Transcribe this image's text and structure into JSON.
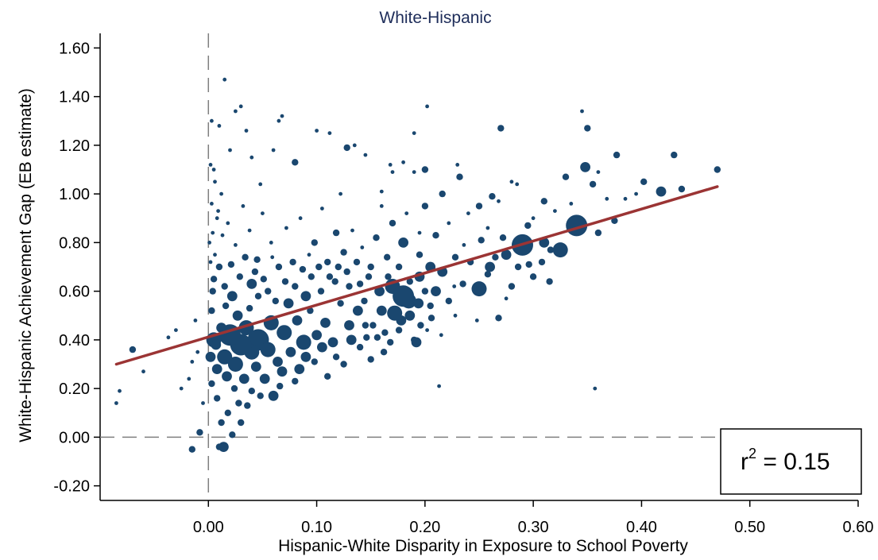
{
  "chart_data": {
    "type": "scatter",
    "title": "White-Hispanic",
    "xlabel": "Hispanic-White Disparity in Exposure to School Poverty",
    "ylabel": "White-Hispanic Achievement Gap (EB estimate)",
    "xlim": [
      -0.1,
      0.6
    ],
    "ylim": [
      -0.26,
      1.66
    ],
    "x_ticks": [
      "0.00",
      "0.10",
      "0.20",
      "0.30",
      "0.40",
      "0.50",
      "0.60"
    ],
    "y_ticks": [
      "-0.20",
      "0.00",
      "0.20",
      "0.40",
      "0.60",
      "0.80",
      "1.00",
      "1.20",
      "1.40",
      "1.60"
    ],
    "reference_lines": {
      "x": 0,
      "y": 0,
      "style": "dashed"
    },
    "fit_line": {
      "x": [
        -0.085,
        0.47
      ],
      "y": [
        0.3,
        1.03
      ],
      "color": "#9b3434"
    },
    "annotation": {
      "base": "r",
      "exponent": "2",
      "rest": " = 0.15"
    },
    "marker_color": "#1a476f",
    "grid": false,
    "points_note_free": true,
    "points": [
      [
        -0.085,
        0.14,
        1
      ],
      [
        -0.082,
        0.19,
        1
      ],
      [
        -0.07,
        0.36,
        2
      ],
      [
        -0.06,
        0.27,
        1
      ],
      [
        -0.037,
        0.41,
        1
      ],
      [
        -0.03,
        0.44,
        1
      ],
      [
        -0.025,
        0.2,
        1
      ],
      [
        -0.018,
        0.24,
        1
      ],
      [
        -0.015,
        0.31,
        1
      ],
      [
        -0.012,
        0.48,
        1
      ],
      [
        -0.01,
        0.35,
        1
      ],
      [
        -0.015,
        -0.05,
        2
      ],
      [
        -0.008,
        0.02,
        2
      ],
      [
        -0.005,
        0.14,
        1
      ],
      [
        0.003,
        1.3,
        1
      ],
      [
        0.015,
        1.47,
        1
      ],
      [
        0.005,
        1.1,
        1
      ],
      [
        0.01,
        1.28,
        1
      ],
      [
        0.025,
        1.34,
        1
      ],
      [
        0.03,
        1.36,
        1
      ],
      [
        0.035,
        1.26,
        1
      ],
      [
        0.04,
        1.15,
        1
      ],
      [
        0.048,
        1.04,
        1
      ],
      [
        0.065,
        1.3,
        1
      ],
      [
        0.068,
        1.32,
        1
      ],
      [
        0.02,
        1.18,
        1
      ],
      [
        0.06,
        1.18,
        1
      ],
      [
        0.08,
        1.13,
        2
      ],
      [
        0.1,
        1.26,
        1
      ],
      [
        0.112,
        1.25,
        1
      ],
      [
        0.128,
        1.19,
        2
      ],
      [
        0.135,
        1.2,
        1
      ],
      [
        0.145,
        1.16,
        1
      ],
      [
        0.16,
        1.01,
        1
      ],
      [
        0.168,
        1.12,
        1
      ],
      [
        0.17,
        1.09,
        1
      ],
      [
        0.18,
        1.13,
        1
      ],
      [
        0.19,
        1.09,
        1
      ],
      [
        0.19,
        1.25,
        1
      ],
      [
        0.2,
        1.1,
        2
      ],
      [
        0.202,
        1.36,
        1
      ],
      [
        0.216,
        1.0,
        2
      ],
      [
        0.23,
        1.12,
        1
      ],
      [
        0.232,
        1.07,
        2
      ],
      [
        0.24,
        0.92,
        1
      ],
      [
        0.25,
        0.95,
        2
      ],
      [
        0.258,
        0.86,
        1
      ],
      [
        0.262,
        0.99,
        2
      ],
      [
        0.268,
        0.97,
        1
      ],
      [
        0.27,
        1.27,
        2
      ],
      [
        0.28,
        1.05,
        1
      ],
      [
        0.285,
        1.04,
        1
      ],
      [
        0.295,
        0.87,
        2
      ],
      [
        0.3,
        0.9,
        1
      ],
      [
        0.31,
        0.97,
        2
      ],
      [
        0.32,
        0.93,
        1
      ],
      [
        0.33,
        1.07,
        2
      ],
      [
        0.335,
        0.96,
        1
      ],
      [
        0.345,
        1.34,
        1
      ],
      [
        0.348,
        1.11,
        3
      ],
      [
        0.35,
        1.27,
        2
      ],
      [
        0.355,
        1.04,
        2
      ],
      [
        0.36,
        1.09,
        1
      ],
      [
        0.368,
        0.98,
        1
      ],
      [
        0.377,
        1.16,
        2
      ],
      [
        0.385,
        0.98,
        1
      ],
      [
        0.395,
        1.0,
        1
      ],
      [
        0.402,
        1.05,
        2
      ],
      [
        0.418,
        1.01,
        3
      ],
      [
        0.43,
        1.16,
        2
      ],
      [
        0.437,
        1.02,
        2
      ],
      [
        0.47,
        1.1,
        2
      ],
      [
        0.375,
        0.89,
        2
      ],
      [
        0.36,
        0.84,
        2
      ],
      [
        0.34,
        0.87,
        5
      ],
      [
        0.325,
        0.77,
        4
      ],
      [
        0.31,
        0.8,
        3
      ],
      [
        0.29,
        0.79,
        5
      ],
      [
        0.275,
        0.75,
        3
      ],
      [
        0.26,
        0.7,
        3
      ],
      [
        0.25,
        0.61,
        4
      ],
      [
        0.235,
        0.63,
        2
      ],
      [
        0.248,
        0.48,
        1
      ],
      [
        0.268,
        0.49,
        2
      ],
      [
        0.28,
        0.62,
        2
      ],
      [
        0.3,
        0.66,
        2
      ],
      [
        0.315,
        0.64,
        2
      ],
      [
        0.275,
        0.57,
        1
      ],
      [
        0.227,
        0.62,
        1
      ],
      [
        0.222,
        0.56,
        2
      ],
      [
        0.21,
        0.6,
        3
      ],
      [
        0.205,
        0.54,
        2
      ],
      [
        0.195,
        0.66,
        3
      ],
      [
        0.185,
        0.56,
        4
      ],
      [
        0.178,
        0.48,
        3
      ],
      [
        0.17,
        0.62,
        4
      ],
      [
        0.16,
        0.52,
        3
      ],
      [
        0.152,
        0.46,
        2
      ],
      [
        0.146,
        0.41,
        2
      ],
      [
        0.138,
        0.52,
        3
      ],
      [
        0.13,
        0.46,
        3
      ],
      [
        0.122,
        0.55,
        2
      ],
      [
        0.115,
        0.39,
        3
      ],
      [
        0.108,
        0.47,
        3
      ],
      [
        0.1,
        0.42,
        3
      ],
      [
        0.094,
        0.52,
        2
      ],
      [
        0.088,
        0.39,
        4
      ],
      [
        0.082,
        0.48,
        3
      ],
      [
        0.076,
        0.35,
        3
      ],
      [
        0.07,
        0.43,
        4
      ],
      [
        0.064,
        0.31,
        3
      ],
      [
        0.058,
        0.47,
        4
      ],
      [
        0.052,
        0.24,
        3
      ],
      [
        0.046,
        0.4,
        5
      ],
      [
        0.04,
        0.35,
        4
      ],
      [
        0.035,
        0.45,
        4
      ],
      [
        0.03,
        0.38,
        5
      ],
      [
        0.025,
        0.3,
        4
      ],
      [
        0.02,
        0.42,
        5
      ],
      [
        0.015,
        0.33,
        4
      ],
      [
        0.012,
        0.45,
        3
      ],
      [
        0.008,
        0.28,
        3
      ],
      [
        0.005,
        0.4,
        4
      ],
      [
        0.003,
        0.52,
        2
      ],
      [
        0.022,
        0.58,
        3
      ],
      [
        0.04,
        0.63,
        3
      ],
      [
        0.055,
        0.6,
        2
      ],
      [
        0.065,
        0.7,
        2
      ],
      [
        0.08,
        0.62,
        2
      ],
      [
        0.095,
        0.66,
        2
      ],
      [
        0.11,
        0.72,
        2
      ],
      [
        0.125,
        0.76,
        2
      ],
      [
        0.14,
        0.63,
        2
      ],
      [
        0.15,
        0.7,
        2
      ],
      [
        0.165,
        0.74,
        2
      ],
      [
        0.18,
        0.8,
        3
      ],
      [
        0.195,
        0.75,
        2
      ],
      [
        0.205,
        0.7,
        3
      ],
      [
        0.216,
        0.68,
        3
      ],
      [
        0.196,
        0.46,
        2
      ],
      [
        0.19,
        0.4,
        2
      ],
      [
        0.192,
        0.39,
        3
      ],
      [
        0.213,
        0.21,
        1
      ],
      [
        0.206,
        0.49,
        2
      ],
      [
        0.18,
        0.58,
        5
      ],
      [
        0.172,
        0.51,
        4
      ],
      [
        0.163,
        0.43,
        2
      ],
      [
        0.162,
        0.35,
        2
      ],
      [
        0.15,
        0.32,
        2
      ],
      [
        0.14,
        0.37,
        2
      ],
      [
        0.125,
        0.3,
        2
      ],
      [
        0.11,
        0.25,
        2
      ],
      [
        0.098,
        0.31,
        2
      ],
      [
        0.084,
        0.28,
        3
      ],
      [
        0.08,
        0.23,
        2
      ],
      [
        0.066,
        0.21,
        2
      ],
      [
        0.06,
        0.17,
        3
      ],
      [
        0.048,
        0.17,
        2
      ],
      [
        0.036,
        0.13,
        2
      ],
      [
        0.028,
        0.14,
        2
      ],
      [
        0.018,
        0.1,
        2
      ],
      [
        0.012,
        0.06,
        2
      ],
      [
        0.008,
        0.16,
        2
      ],
      [
        0.003,
        0.22,
        2
      ],
      [
        0.022,
        0.01,
        2
      ],
      [
        0.01,
        -0.04,
        2
      ],
      [
        0.014,
        -0.04,
        3
      ],
      [
        0.03,
        0.06,
        2
      ],
      [
        0.005,
        0.65,
        2
      ],
      [
        0.01,
        0.7,
        2
      ],
      [
        0.015,
        0.62,
        2
      ],
      [
        0.006,
        0.75,
        1
      ],
      [
        0.004,
        0.84,
        1
      ],
      [
        0.008,
        0.9,
        1
      ],
      [
        0.003,
        0.96,
        1
      ],
      [
        0.012,
        1.0,
        1
      ],
      [
        0.018,
        0.88,
        1
      ],
      [
        0.025,
        0.79,
        1
      ],
      [
        0.032,
        0.95,
        1
      ],
      [
        0.038,
        0.85,
        1
      ],
      [
        0.045,
        0.73,
        2
      ],
      [
        0.05,
        0.92,
        1
      ],
      [
        0.058,
        0.8,
        1
      ],
      [
        0.072,
        0.86,
        1
      ],
      [
        0.085,
        0.9,
        1
      ],
      [
        0.098,
        0.8,
        2
      ],
      [
        0.105,
        0.94,
        1
      ],
      [
        0.118,
        0.84,
        2
      ],
      [
        0.122,
        1.0,
        1
      ],
      [
        0.133,
        0.85,
        1
      ],
      [
        0.142,
        0.78,
        1
      ],
      [
        0.155,
        0.82,
        2
      ],
      [
        0.16,
        0.95,
        1
      ],
      [
        0.17,
        0.88,
        2
      ],
      [
        0.183,
        0.92,
        1
      ],
      [
        0.195,
        0.84,
        1
      ],
      [
        0.2,
        0.95,
        2
      ],
      [
        0.21,
        0.83,
        2
      ],
      [
        0.222,
        0.88,
        1
      ],
      [
        0.228,
        0.74,
        2
      ],
      [
        0.236,
        0.79,
        1
      ],
      [
        0.242,
        0.72,
        2
      ],
      [
        0.252,
        0.81,
        2
      ],
      [
        0.258,
        0.67,
        2
      ],
      [
        0.265,
        0.74,
        2
      ],
      [
        0.272,
        0.82,
        2
      ],
      [
        0.286,
        0.7,
        2
      ],
      [
        0.296,
        0.71,
        2
      ],
      [
        0.308,
        0.72,
        2
      ],
      [
        0.316,
        0.77,
        2
      ],
      [
        0.228,
        0.5,
        1
      ],
      [
        0.215,
        0.42,
        1
      ],
      [
        0.202,
        0.44,
        1
      ],
      [
        0.357,
        0.2,
        1
      ],
      [
        0.046,
        0.58,
        2
      ],
      [
        0.038,
        0.53,
        2
      ],
      [
        0.062,
        0.56,
        2
      ],
      [
        0.074,
        0.55,
        3
      ],
      [
        0.09,
        0.58,
        3
      ],
      [
        0.104,
        0.6,
        2
      ],
      [
        0.117,
        0.64,
        2
      ],
      [
        0.13,
        0.62,
        2
      ],
      [
        0.144,
        0.56,
        2
      ],
      [
        0.158,
        0.6,
        3
      ],
      [
        0.027,
        0.5,
        3
      ],
      [
        0.016,
        0.54,
        2
      ],
      [
        0.055,
        0.36,
        4
      ],
      [
        0.044,
        0.29,
        3
      ],
      [
        0.068,
        0.27,
        3
      ],
      [
        0.09,
        0.33,
        3
      ],
      [
        0.105,
        0.37,
        3
      ],
      [
        0.118,
        0.33,
        2
      ],
      [
        0.132,
        0.4,
        3
      ],
      [
        0.145,
        0.46,
        2
      ],
      [
        0.156,
        0.41,
        2
      ],
      [
        0.002,
        0.33,
        3
      ],
      [
        0.007,
        0.38,
        3
      ],
      [
        0.017,
        0.25,
        3
      ],
      [
        0.024,
        0.2,
        2
      ],
      [
        0.033,
        0.24,
        3
      ],
      [
        0.04,
        0.19,
        2
      ],
      [
        0.004,
        0.6,
        2
      ],
      [
        0.002,
        0.72,
        1
      ],
      [
        0.001,
        0.8,
        1
      ],
      [
        0.006,
        1.05,
        1
      ],
      [
        0.002,
        1.12,
        1
      ],
      [
        0.009,
        0.93,
        1
      ],
      [
        0.013,
        0.83,
        1
      ],
      [
        0.021,
        0.71,
        2
      ],
      [
        0.029,
        0.66,
        2
      ],
      [
        0.034,
        0.74,
        2
      ],
      [
        0.043,
        0.68,
        2
      ],
      [
        0.051,
        0.65,
        2
      ],
      [
        0.059,
        0.74,
        1
      ],
      [
        0.071,
        0.64,
        2
      ],
      [
        0.078,
        0.72,
        2
      ],
      [
        0.087,
        0.69,
        2
      ],
      [
        0.093,
        0.75,
        1
      ],
      [
        0.102,
        0.7,
        2
      ],
      [
        0.112,
        0.66,
        2
      ],
      [
        0.12,
        0.7,
        2
      ],
      [
        0.128,
        0.68,
        2
      ],
      [
        0.137,
        0.72,
        2
      ],
      [
        0.148,
        0.66,
        2
      ],
      [
        0.166,
        0.66,
        2
      ],
      [
        0.176,
        0.7,
        2
      ],
      [
        0.186,
        0.64,
        2
      ],
      [
        0.176,
        0.44,
        2
      ],
      [
        0.168,
        0.39,
        2
      ],
      [
        0.186,
        0.5,
        3
      ],
      [
        0.194,
        0.55,
        3
      ],
      [
        0.2,
        0.6,
        2
      ]
    ]
  }
}
